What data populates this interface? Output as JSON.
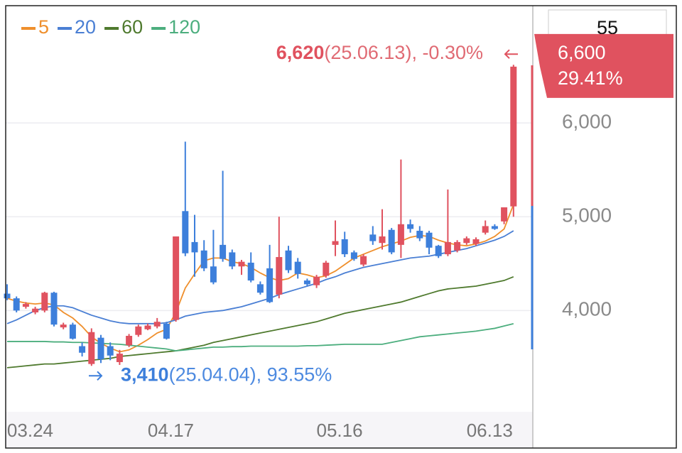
{
  "chart_data": {
    "type": "candlestick",
    "categories": [
      null,
      null,
      null,
      null,
      null,
      "03.24",
      null,
      null,
      null,
      null,
      null,
      null,
      null,
      null,
      null,
      null,
      null,
      null,
      null,
      null,
      "04.17",
      null,
      null,
      null,
      null,
      null,
      null,
      null,
      null,
      null,
      null,
      null,
      null,
      null,
      null,
      null,
      null,
      null,
      "05.16",
      null,
      null,
      null,
      null,
      null,
      null,
      null,
      null,
      null,
      null,
      null,
      null,
      null,
      null,
      null,
      "06.13"
    ],
    "open": [
      4180,
      4130,
      4040,
      3980,
      4000,
      4190,
      3820,
      3850,
      3620,
      3430,
      3710,
      3620,
      3450,
      3630,
      3740,
      3800,
      3830,
      3860,
      3900,
      5060,
      4730,
      4640,
      4470,
      4700,
      4620,
      4470,
      4510,
      4280,
      4450,
      4170,
      4640,
      4520,
      4320,
      4270,
      4370,
      4700,
      4760,
      4620,
      4490,
      4810,
      4720,
      4860,
      4700,
      4920,
      4850,
      4830,
      4690,
      4600,
      4640,
      4720,
      4710,
      4830,
      4900,
      4950,
      5110
    ],
    "high": [
      4280,
      4150,
      4090,
      4040,
      4200,
      4200,
      3870,
      3870,
      3660,
      3810,
      3740,
      3660,
      3580,
      3750,
      3850,
      3860,
      3920,
      3880,
      4790,
      5800,
      5020,
      4750,
      4860,
      5490,
      4650,
      4540,
      4620,
      4310,
      4700,
      5000,
      4690,
      4560,
      4340,
      4380,
      4530,
      4960,
      4840,
      4640,
      4600,
      4900,
      5080,
      4880,
      5610,
      4970,
      4900,
      4850,
      4700,
      5290,
      4750,
      4790,
      4780,
      4960,
      4920,
      5100,
      6620
    ],
    "low": [
      4110,
      3980,
      4020,
      3960,
      3980,
      3830,
      3800,
      3690,
      3510,
      3410,
      3440,
      3470,
      3420,
      3610,
      3720,
      3790,
      3810,
      3690,
      3880,
      4580,
      4360,
      4420,
      4280,
      4520,
      4440,
      4380,
      4300,
      4170,
      4080,
      4130,
      4400,
      4340,
      4260,
      4240,
      4350,
      4580,
      4570,
      4530,
      4470,
      4700,
      4650,
      4600,
      4560,
      4830,
      4740,
      4600,
      4560,
      4580,
      4620,
      4700,
      4690,
      4810,
      4860,
      4920,
      5000
    ],
    "close": [
      4130,
      4000,
      4070,
      4020,
      4190,
      3850,
      3850,
      3700,
      3550,
      3770,
      3480,
      3520,
      3540,
      3730,
      3830,
      3840,
      3880,
      3700,
      4790,
      4610,
      4620,
      4450,
      4300,
      4550,
      4470,
      4520,
      4320,
      4190,
      4090,
      4570,
      4430,
      4390,
      4280,
      4360,
      4510,
      4740,
      4600,
      4550,
      4580,
      4740,
      4790,
      4620,
      4920,
      4870,
      4770,
      4670,
      4580,
      4730,
      4730,
      4770,
      4760,
      4900,
      4870,
      5100,
      6600
    ],
    "up_color": "#e0525f",
    "down_color": "#3d7fdb",
    "series": [
      {
        "name": "5",
        "color": "#ef8f2c",
        "values": [
          4130,
          4100,
          4080,
          4070,
          4080,
          4060,
          3980,
          3920,
          3830,
          3720,
          3650,
          3600,
          3560,
          3580,
          3630,
          3690,
          3760,
          3800,
          3980,
          4240,
          4390,
          4530,
          4560,
          4560,
          4520,
          4500,
          4460,
          4400,
          4350,
          4320,
          4340,
          4400,
          4380,
          4350,
          4370,
          4420,
          4490,
          4560,
          4600,
          4640,
          4680,
          4710,
          4740,
          4780,
          4800,
          4790,
          4750,
          4720,
          4700,
          4690,
          4710,
          4740,
          4790,
          4870,
          5130
        ]
      },
      {
        "name": "20",
        "color": "#4a7fd4",
        "values": [
          3860,
          3900,
          3950,
          4000,
          4030,
          4050,
          4050,
          4030,
          3990,
          3950,
          3920,
          3890,
          3870,
          3860,
          3860,
          3860,
          3860,
          3870,
          3900,
          3940,
          3960,
          3980,
          3990,
          4000,
          4020,
          4040,
          4070,
          4100,
          4130,
          4170,
          4200,
          4230,
          4260,
          4290,
          4330,
          4360,
          4400,
          4430,
          4460,
          4480,
          4500,
          4520,
          4540,
          4560,
          4570,
          4580,
          4600,
          4620,
          4640,
          4660,
          4690,
          4720,
          4750,
          4790,
          4850
        ]
      },
      {
        "name": "60",
        "color": "#4f7a2e",
        "values": [
          3390,
          3400,
          3410,
          3420,
          3430,
          3430,
          3440,
          3450,
          3460,
          3470,
          3480,
          3490,
          3510,
          3520,
          3530,
          3540,
          3550,
          3560,
          3570,
          3590,
          3610,
          3630,
          3660,
          3680,
          3700,
          3720,
          3740,
          3760,
          3780,
          3800,
          3820,
          3840,
          3860,
          3880,
          3910,
          3940,
          3970,
          3990,
          4010,
          4030,
          4050,
          4070,
          4090,
          4120,
          4150,
          4180,
          4210,
          4230,
          4240,
          4250,
          4260,
          4280,
          4300,
          4320,
          4360
        ]
      },
      {
        "name": "120",
        "color": "#4cae7e",
        "values": [
          3670,
          3670,
          3670,
          3670,
          3670,
          3665,
          3665,
          3660,
          3660,
          3655,
          3650,
          3645,
          3640,
          3630,
          3620,
          3610,
          3600,
          3590,
          3570,
          3580,
          3590,
          3600,
          3610,
          3610,
          3615,
          3615,
          3620,
          3620,
          3620,
          3620,
          3620,
          3620,
          3625,
          3625,
          3630,
          3635,
          3640,
          3640,
          3640,
          3640,
          3640,
          3660,
          3680,
          3700,
          3720,
          3730,
          3740,
          3750,
          3760,
          3770,
          3780,
          3795,
          3810,
          3835,
          3860
        ]
      }
    ],
    "ylim": [
      2920,
      7250
    ],
    "yticks": [
      {
        "value": 4000,
        "label": "4,000"
      },
      {
        "value": 5000,
        "label": "5,000"
      },
      {
        "value": 6000,
        "label": "6,000"
      }
    ],
    "grid": true,
    "max_label": {
      "value": 6620,
      "label": "6,620",
      "detail": "(25.06.13), -0.30%"
    },
    "min_label": {
      "value": 3410,
      "label": "3,410",
      "detail": "(25.04.04), 93.55%"
    },
    "current": {
      "value": 6600,
      "label": "6,600",
      "change": "29.41%"
    },
    "period": 55
  }
}
